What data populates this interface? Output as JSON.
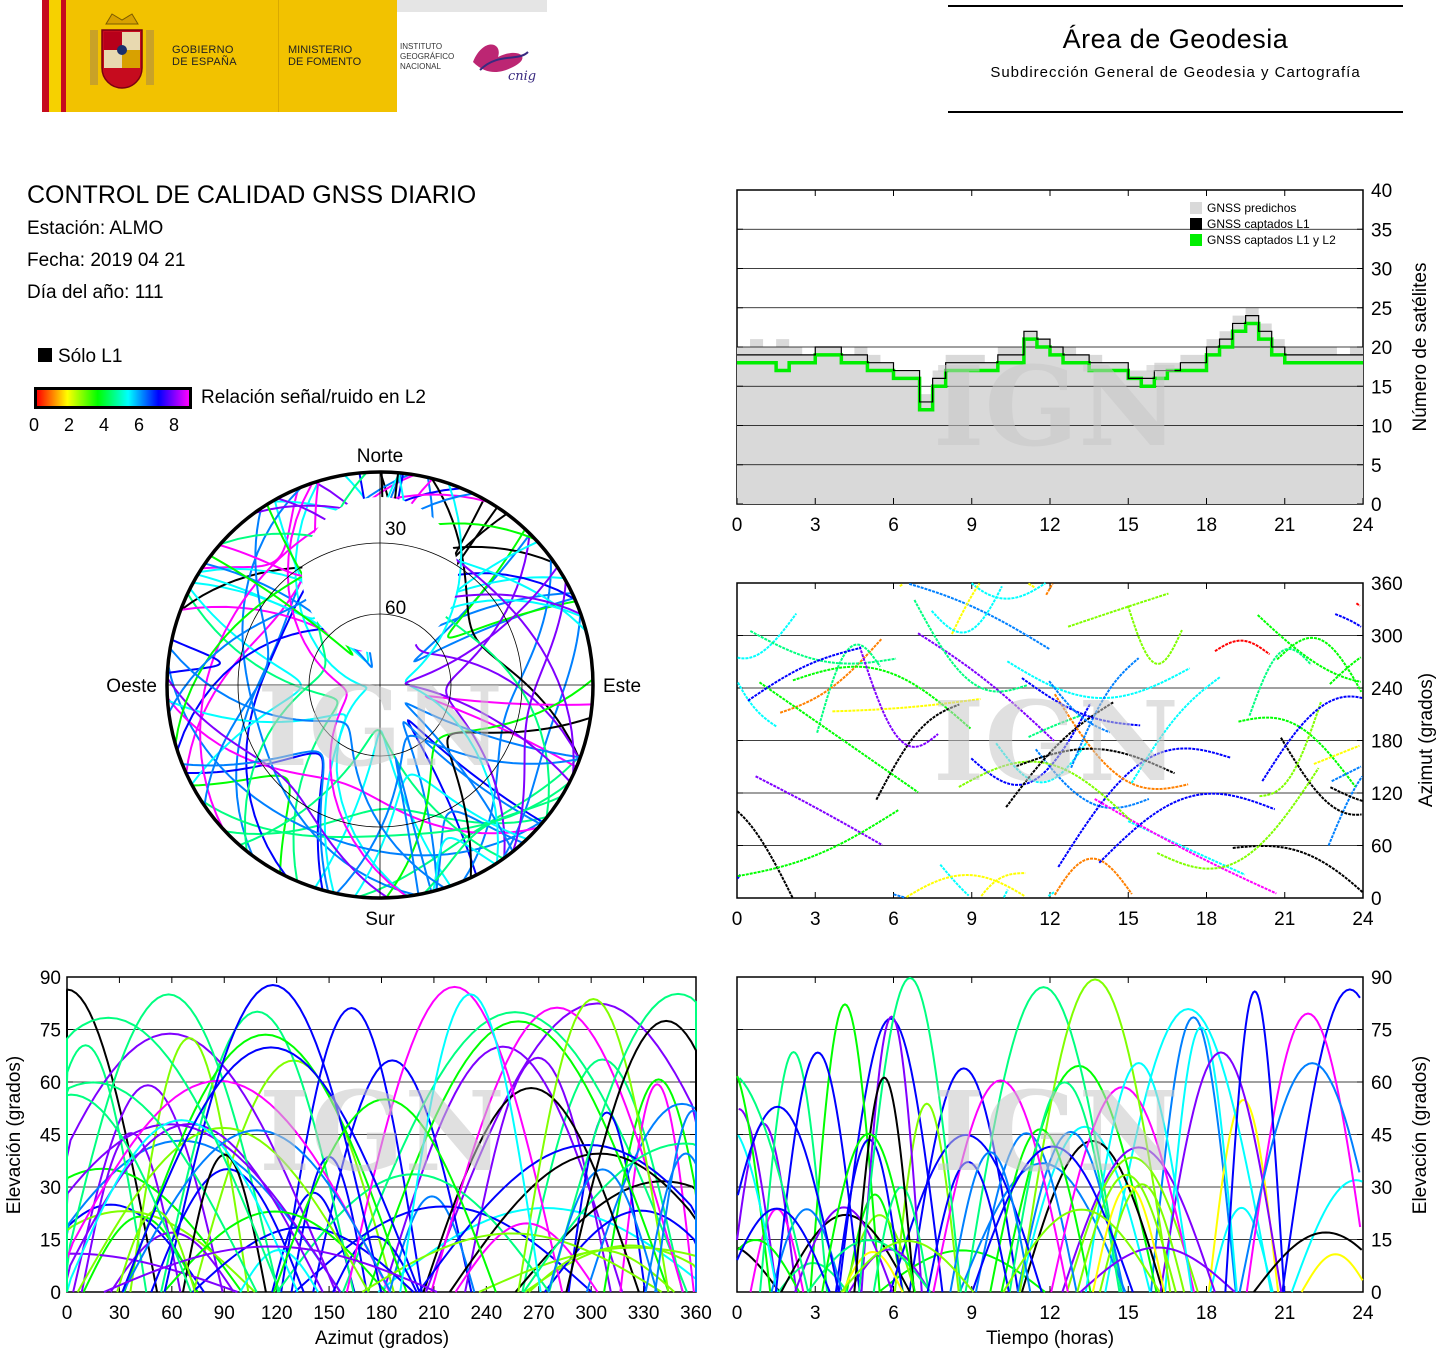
{
  "header": {
    "gov_line1": "GOBIERNO",
    "gov_line2": "DE ESPAÑA",
    "min_line1": "MINISTERIO",
    "min_line2": "DE FOMENTO",
    "ign_line1": "INSTITUTO",
    "ign_line2": "GEOGRÁFICO",
    "ign_line3": "NACIONAL",
    "cnig": "cnig",
    "area_title": "Área de Geodesia",
    "area_subtitle": "Subdirección General de Geodesia y Cartografía"
  },
  "report": {
    "title": "CONTROL DE CALIDAD GNSS DIARIO",
    "station": "Estación: ALMO",
    "date": "Fecha: 2019 04 21",
    "doy": "Día del año: 111",
    "l1_only": "Sólo L1",
    "snr_label": "Relación señal/ruido en L2",
    "snr_ticks": [
      "0",
      "2",
      "4",
      "6",
      "8"
    ],
    "watermark": "IGN"
  },
  "colors": {
    "predicted": "#d9d9d9",
    "l1": "#000000",
    "l1l2": "#00ee00",
    "track_palette": [
      "#ff0000",
      "#ff8000",
      "#ffff00",
      "#80ff00",
      "#00ff00",
      "#00ff80",
      "#00ffff",
      "#0080ff",
      "#0000ff",
      "#8000ff",
      "#ff00ff"
    ]
  },
  "chart_data": [
    {
      "type": "area",
      "id": "satellite_count",
      "ylabel": "Número de satélites",
      "xlim": [
        0,
        24
      ],
      "ylim": [
        0,
        40
      ],
      "x_ticks": [
        "0",
        "3",
        "6",
        "9",
        "12",
        "15",
        "18",
        "21",
        "24"
      ],
      "y_ticks": [
        "0",
        "5",
        "10",
        "15",
        "20",
        "25",
        "30",
        "35",
        "40"
      ],
      "grid": true,
      "legend_position": "top-right",
      "legend": [
        "GNSS predichos",
        "GNSS captados L1",
        "GNSS captados L1 y L2"
      ],
      "x": [
        0,
        0.5,
        1,
        1.5,
        2,
        2.5,
        3,
        3.5,
        4,
        4.5,
        5,
        5.5,
        6,
        6.5,
        7,
        7.5,
        8,
        8.5,
        9,
        9.5,
        10,
        10.5,
        11,
        11.5,
        12,
        12.5,
        13,
        13.5,
        14,
        14.5,
        15,
        15.5,
        16,
        16.5,
        17,
        17.5,
        18,
        18.5,
        19,
        19.5,
        20,
        20.5,
        21,
        21.5,
        22,
        22.5,
        23,
        23.5,
        24
      ],
      "series": [
        {
          "name": "GNSS predichos",
          "values": [
            20,
            21,
            20,
            21,
            20,
            19,
            20,
            20,
            19,
            20,
            19,
            18,
            17,
            17,
            14,
            17,
            19,
            19,
            19,
            18,
            20,
            20,
            22,
            21,
            20,
            20,
            19,
            19,
            18,
            18,
            17,
            17,
            18,
            18,
            19,
            19,
            21,
            22,
            24,
            25,
            23,
            21,
            20,
            20,
            20,
            20,
            19,
            20,
            20
          ]
        },
        {
          "name": "GNSS captados L1",
          "values": [
            19,
            19,
            19,
            19,
            19,
            19,
            20,
            20,
            19,
            19,
            18,
            18,
            17,
            17,
            13,
            16,
            18,
            18,
            18,
            18,
            19,
            19,
            22,
            21,
            20,
            19,
            19,
            18,
            18,
            18,
            16,
            16,
            17,
            17,
            18,
            18,
            20,
            21,
            23,
            24,
            22,
            20,
            19,
            19,
            19,
            19,
            19,
            19,
            19
          ]
        },
        {
          "name": "GNSS captados L1 y L2",
          "values": [
            18,
            18,
            18,
            17,
            18,
            18,
            19,
            19,
            18,
            18,
            17,
            17,
            16,
            16,
            12,
            15,
            17,
            17,
            17,
            17,
            18,
            18,
            21,
            20,
            19,
            18,
            18,
            17,
            17,
            17,
            16,
            15,
            16,
            17,
            17,
            17,
            19,
            20,
            22,
            23,
            21,
            19,
            18,
            18,
            18,
            18,
            18,
            18,
            18
          ]
        }
      ]
    },
    {
      "type": "scatter",
      "id": "azimuth_vs_time",
      "ylabel": "Azimut (grados)",
      "xlim": [
        0,
        24
      ],
      "ylim": [
        0,
        360
      ],
      "x_ticks": [
        "0",
        "3",
        "6",
        "9",
        "12",
        "15",
        "18",
        "21",
        "24"
      ],
      "y_ticks": [
        "0",
        "60",
        "120",
        "180",
        "240",
        "300",
        "360"
      ],
      "grid": true
    },
    {
      "type": "scatter",
      "id": "sky_plot",
      "directions": {
        "north": "Norte",
        "south": "Sur",
        "east": "Este",
        "west": "Oeste"
      },
      "rings": [
        "30",
        "60"
      ]
    },
    {
      "type": "scatter",
      "id": "elevation_vs_azimuth",
      "xlabel": "Azimut (grados)",
      "ylabel": "Elevación (grados)",
      "xlim": [
        0,
        360
      ],
      "ylim": [
        0,
        90
      ],
      "x_ticks": [
        "0",
        "30",
        "60",
        "90",
        "120",
        "150",
        "180",
        "210",
        "240",
        "270",
        "300",
        "330",
        "360"
      ],
      "y_ticks": [
        "0",
        "15",
        "30",
        "45",
        "60",
        "75",
        "90"
      ],
      "grid": true
    },
    {
      "type": "line",
      "id": "elevation_vs_time",
      "xlabel": "Tiempo (horas)",
      "ylabel": "Elevación (grados)",
      "xlim": [
        0,
        24
      ],
      "ylim": [
        0,
        90
      ],
      "x_ticks": [
        "0",
        "3",
        "6",
        "9",
        "12",
        "15",
        "18",
        "21",
        "24"
      ],
      "y_ticks": [
        "0",
        "15",
        "30",
        "45",
        "60",
        "75",
        "90"
      ],
      "grid": true
    }
  ]
}
